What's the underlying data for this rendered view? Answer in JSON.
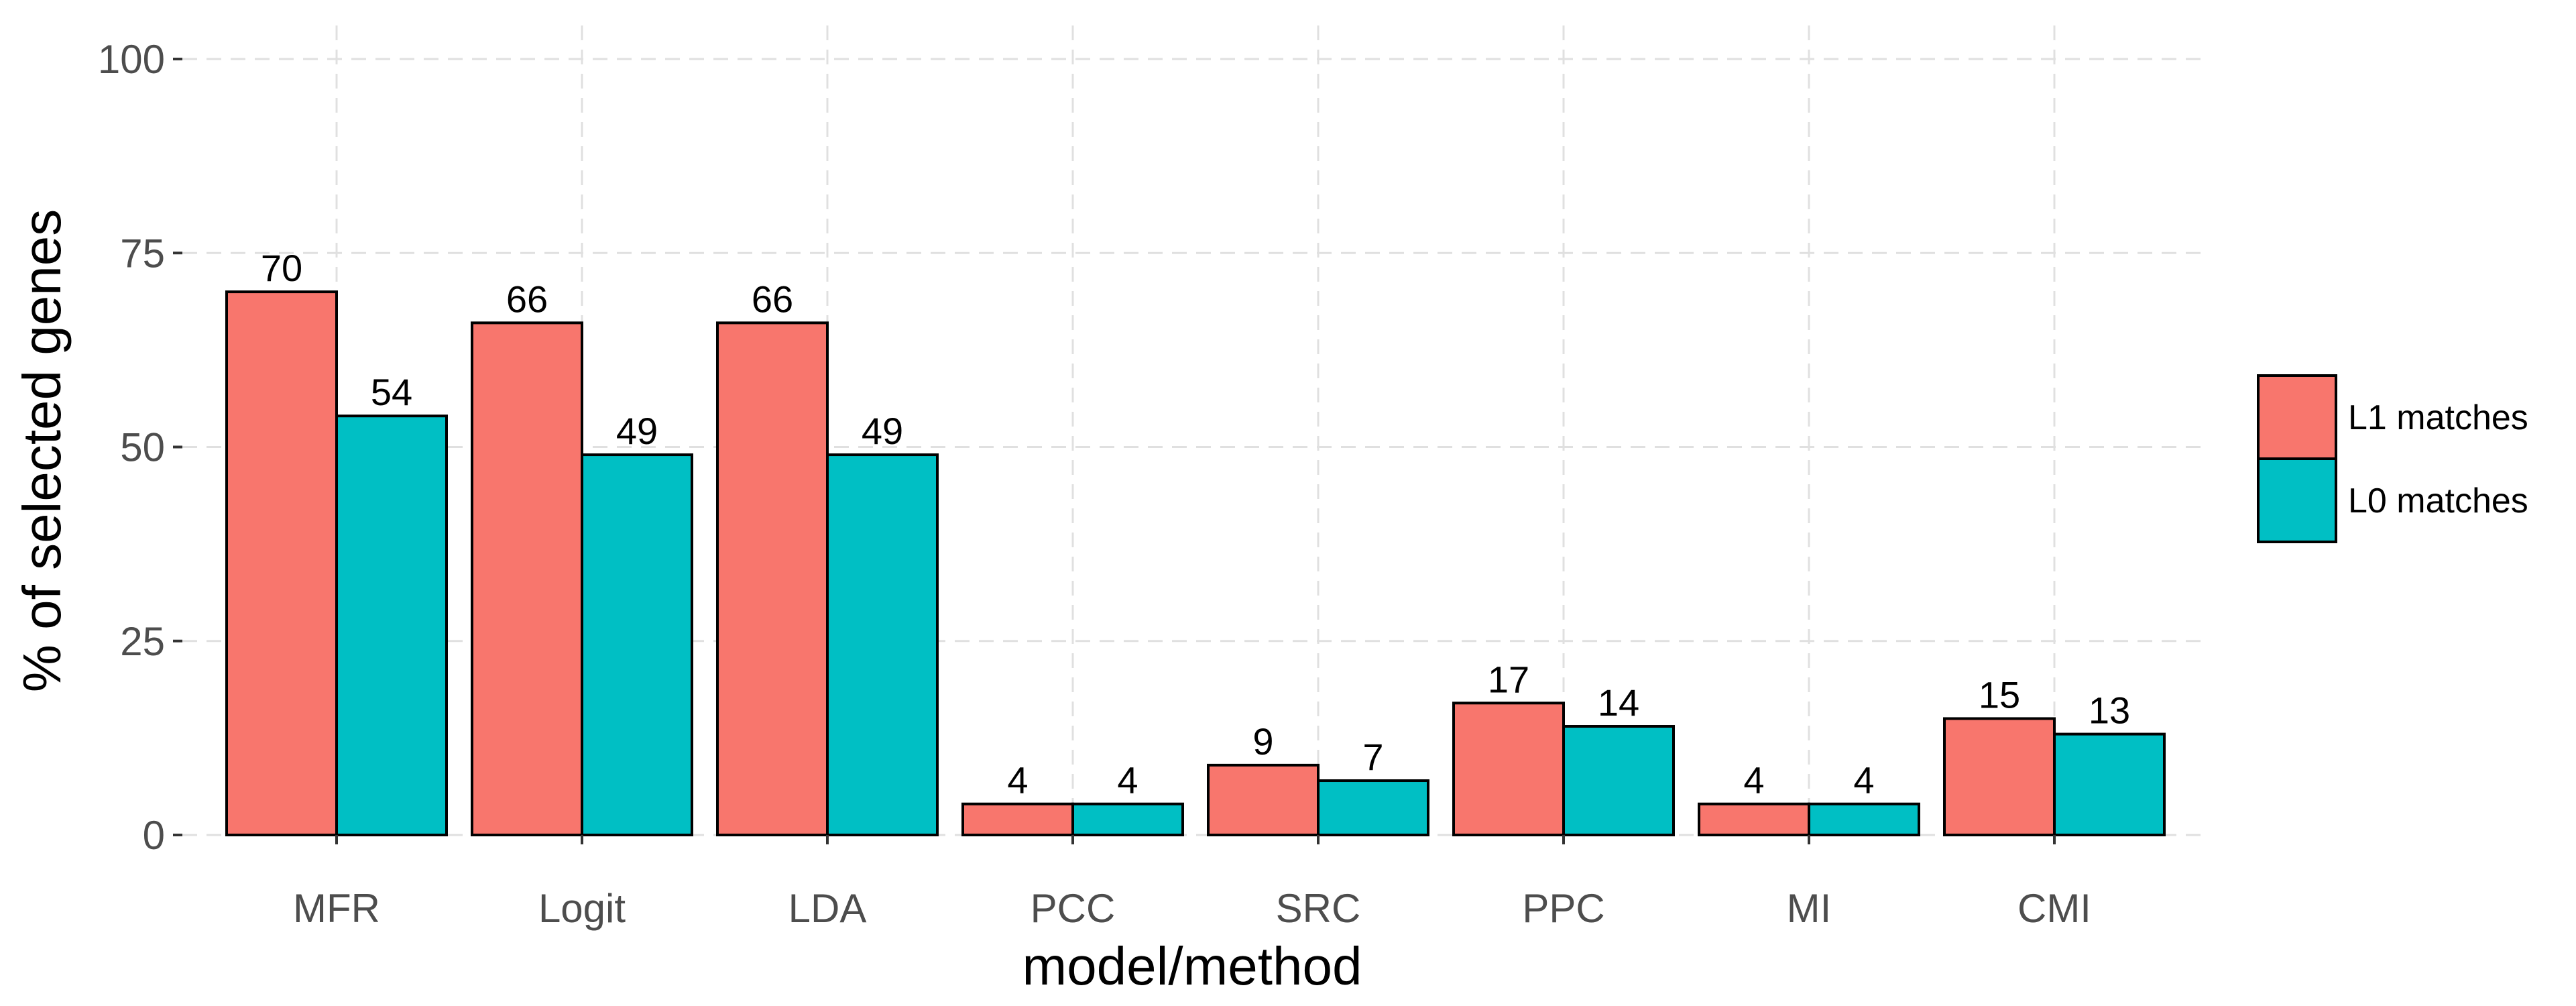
{
  "chart_data": {
    "type": "bar",
    "xlabel": "model/method",
    "ylabel": "% of  selected genes",
    "categories": [
      "MFR",
      "Logit",
      "LDA",
      "PCC",
      "SRC",
      "PPC",
      "MI",
      "CMI"
    ],
    "series": [
      {
        "name": "L1 matches",
        "color": "#F8766D",
        "values": [
          70,
          66,
          66,
          4,
          9,
          17,
          4,
          15
        ]
      },
      {
        "name": "L0 matches",
        "color": "#00BFC4",
        "values": [
          54,
          49,
          49,
          4,
          7,
          14,
          4,
          13
        ]
      }
    ],
    "yticks": [
      0,
      25,
      50,
      75,
      100
    ],
    "ylim": [
      0,
      100
    ],
    "grid": true,
    "legend_position": "right"
  }
}
